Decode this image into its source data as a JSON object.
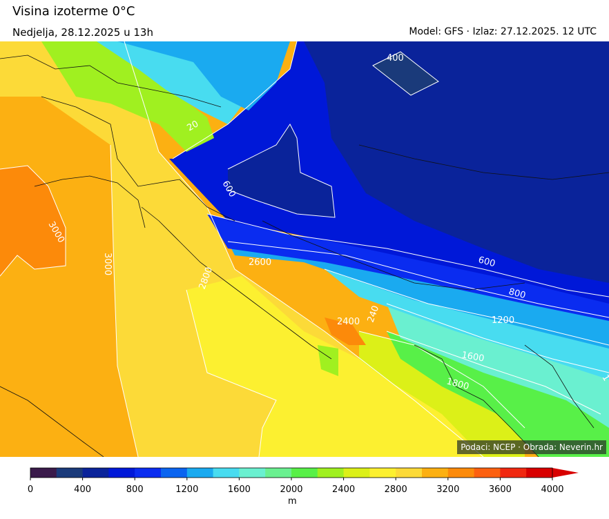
{
  "header": {
    "title": "Visina izoterme 0°C",
    "date": "Nedjelja, 28.12.2025 u 13h",
    "model": "Model: GFS · Izlaz: 27.12.2025. 12 UTC"
  },
  "credit": "Podaci: NCEP · Obrada: Neverin.hr",
  "contour_labels": [
    "400",
    "600",
    "600",
    "800",
    "1200",
    "1600",
    "1800",
    "2600",
    "2800",
    "3000",
    "3000",
    "1",
    "20",
    "2400",
    "240"
  ],
  "colorbar": {
    "unit": "m",
    "ticks": [
      "0",
      "400",
      "800",
      "1200",
      "1600",
      "2000",
      "2400",
      "2800",
      "3200",
      "3600",
      "4000"
    ],
    "colors": [
      "#3a1a4a",
      "#1a3a7a",
      "#0a239a",
      "#0018d8",
      "#0a2cf0",
      "#0a64f0",
      "#1aaaf0",
      "#48dcf0",
      "#6af0d0",
      "#6af090",
      "#58f048",
      "#a0f020",
      "#dcf018",
      "#fcf030",
      "#fcda38",
      "#fcb012",
      "#fc8a0a",
      "#fc6010",
      "#f02810",
      "#d80000"
    ]
  },
  "palette": {
    "deep": "#0a239a",
    "blue": "#0018d8",
    "mid_blue": "#0a2cf0",
    "azure": "#1aaaf0",
    "cyan": "#48dcf0",
    "aqua": "#6af0d0",
    "green": "#58f048",
    "lime": "#dcf018",
    "yellow": "#fcf030",
    "gold": "#fcda38",
    "orange_light": "#fcb012",
    "orange": "#fc8a0a"
  }
}
